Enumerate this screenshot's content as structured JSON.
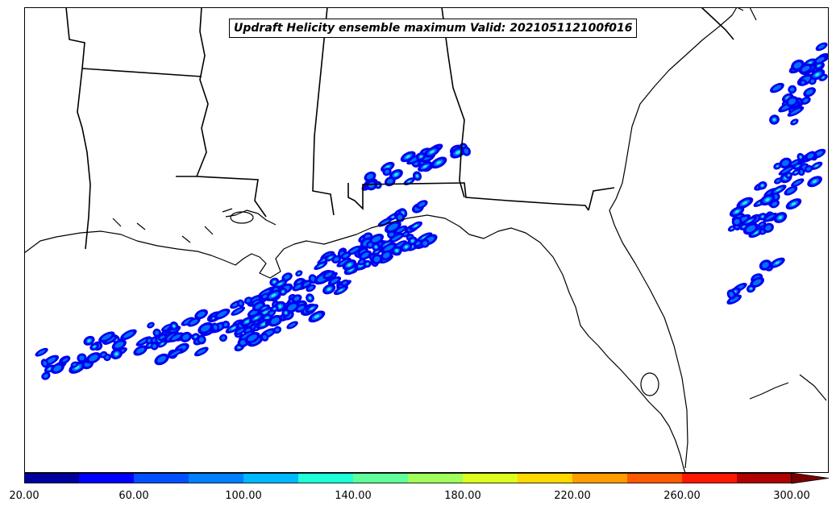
{
  "map": {
    "title": "Updraft Helicity ensemble maximum Valid: 202105112100f016"
  },
  "colorbar": {
    "tick_labels": [
      "20.00",
      "60.00",
      "100.00",
      "140.00",
      "180.00",
      "220.00",
      "260.00",
      "300.00"
    ],
    "colors": [
      "#00009e",
      "#0000ff",
      "#0050ff",
      "#0080ff",
      "#00b8ff",
      "#20ffd8",
      "#60ff9a",
      "#a0ff5a",
      "#dcff20",
      "#ffd800",
      "#ff9c00",
      "#ff5a00",
      "#ff1800",
      "#b00000"
    ],
    "extend_color": "#7a0000"
  }
}
